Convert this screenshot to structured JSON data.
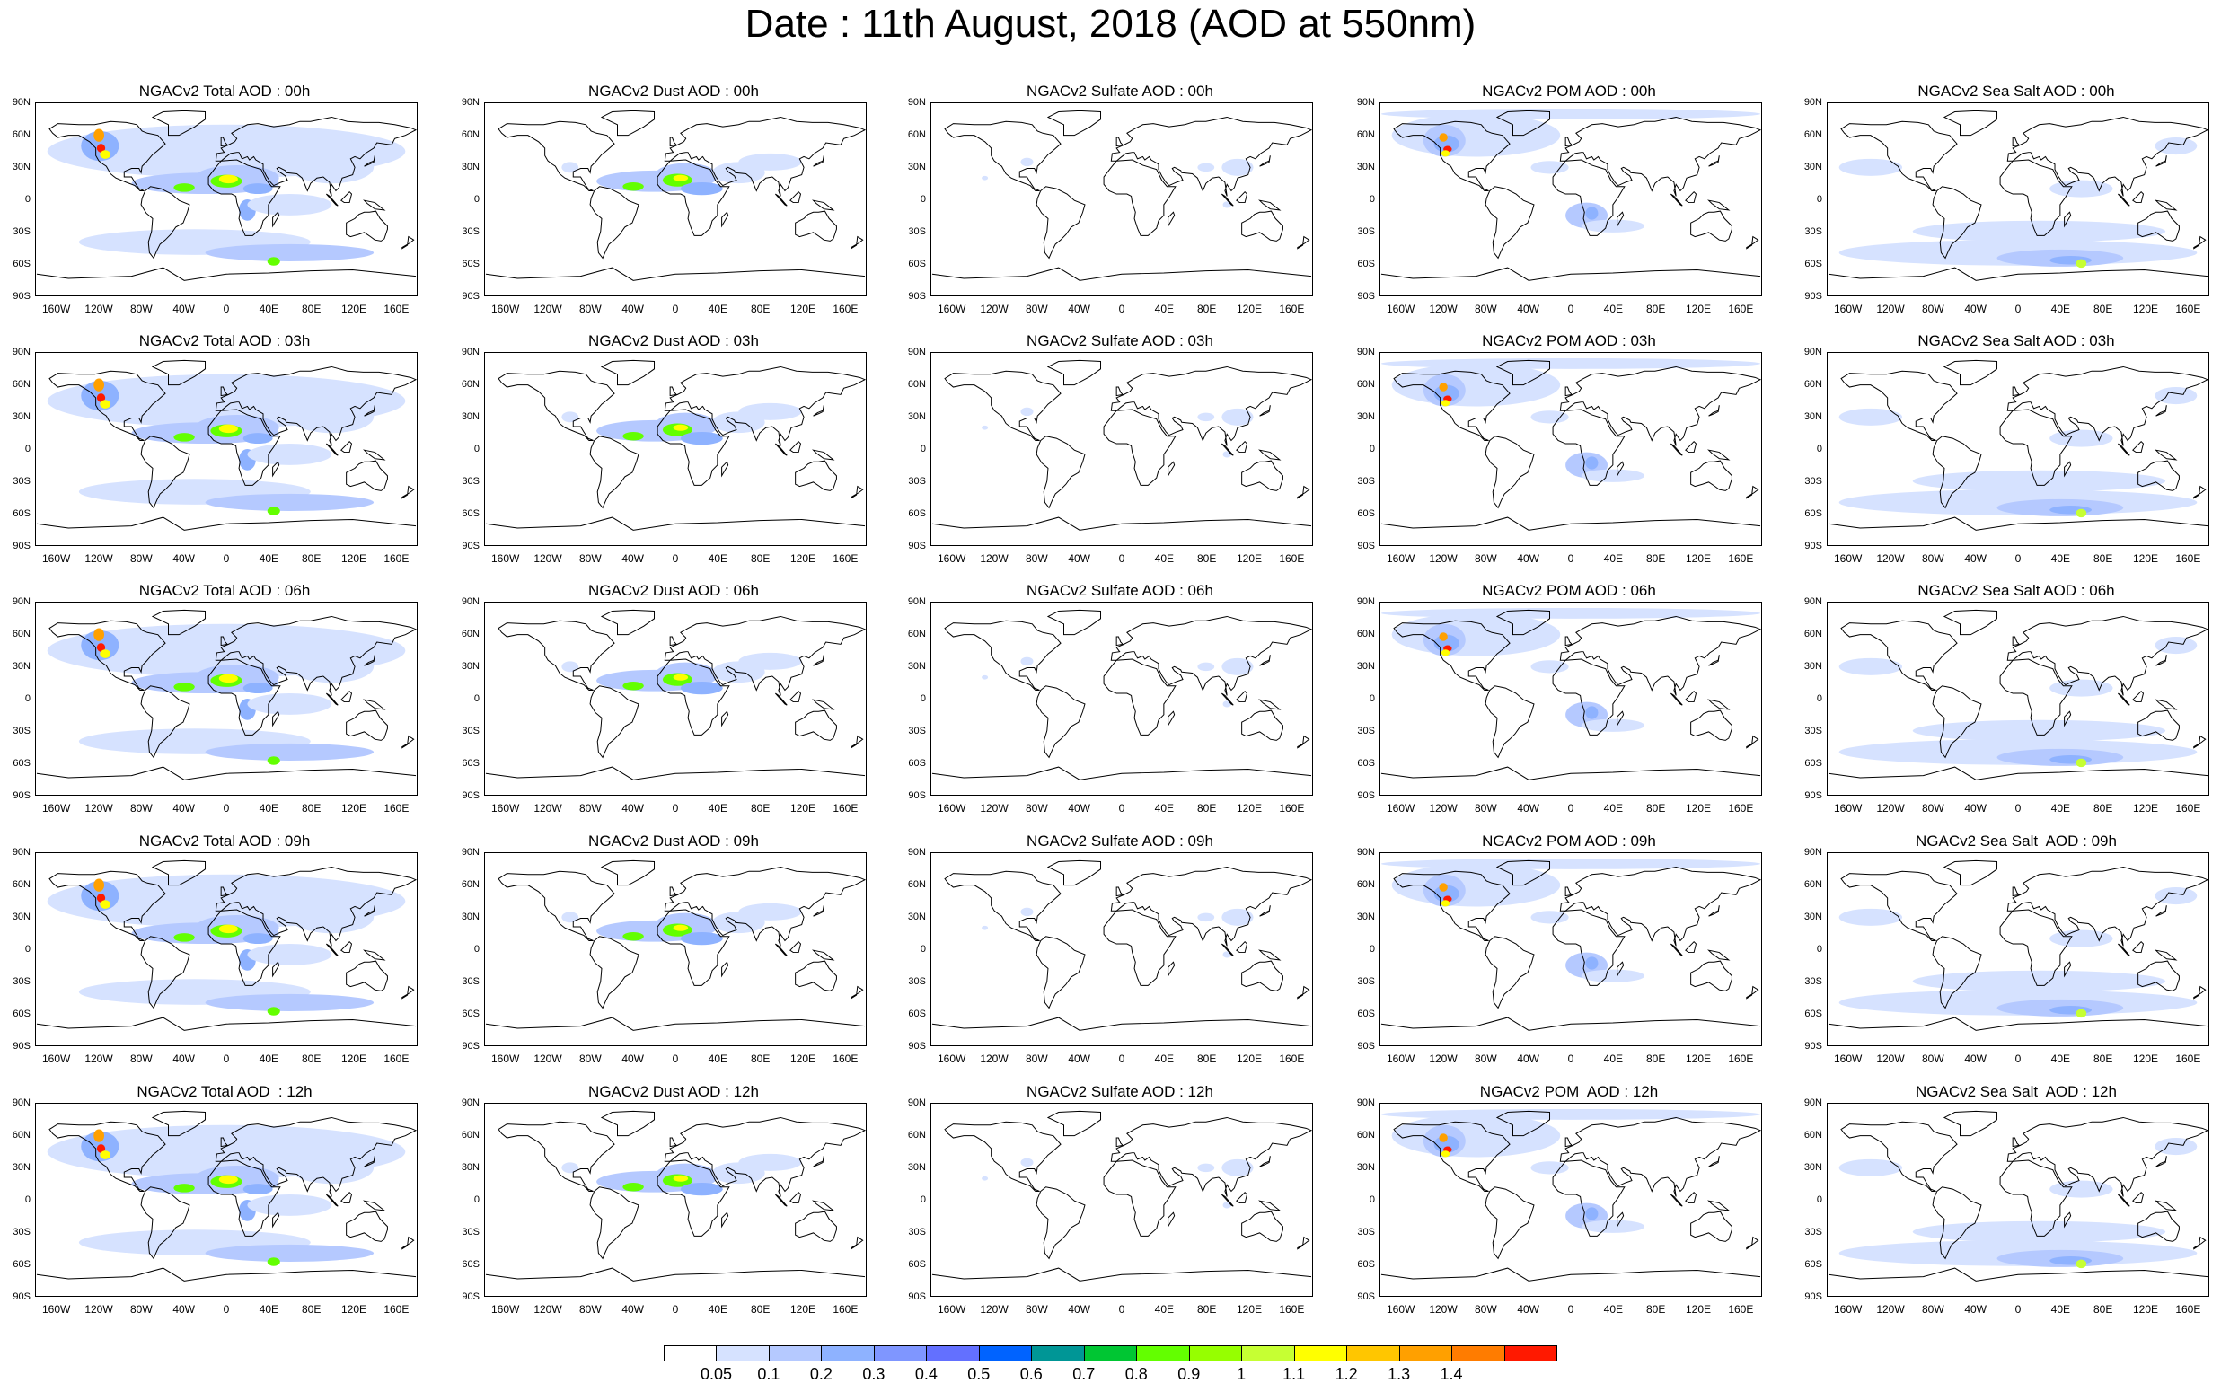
{
  "figure": {
    "title": "Date : 11th August, 2018 (AOD at 550nm)"
  },
  "lat_ticks": [
    "90N",
    "60N",
    "30N",
    "0",
    "30S",
    "60S",
    "90S"
  ],
  "lon_ticks": [
    "160W",
    "120W",
    "80W",
    "40W",
    "0",
    "40E",
    "80E",
    "120E",
    "160E"
  ],
  "species": [
    "Total",
    "Dust",
    "Sulfate",
    "POM",
    "Sea Salt"
  ],
  "times": [
    "00h",
    "03h",
    "06h",
    "09h",
    "12h"
  ],
  "panels": [
    [
      "NGACv2 Total AOD : 00h",
      "NGACv2 Dust AOD : 00h",
      "NGACv2 Sulfate AOD : 00h",
      "NGACv2 POM AOD : 00h",
      "NGACv2 Sea Salt AOD : 00h"
    ],
    [
      "NGACv2 Total AOD : 03h",
      "NGACv2 Dust AOD : 03h",
      "NGACv2 Sulfate AOD : 03h",
      "NGACv2 POM AOD : 03h",
      "NGACv2 Sea Salt AOD : 03h"
    ],
    [
      "NGACv2 Total AOD : 06h",
      "NGACv2 Dust AOD : 06h",
      "NGACv2 Sulfate AOD : 06h",
      "NGACv2 POM AOD : 06h",
      "NGACv2 Sea Salt AOD : 06h"
    ],
    [
      "NGACv2 Total AOD : 09h",
      "NGACv2 Dust AOD : 09h",
      "NGACv2 Sulfate AOD : 09h",
      "NGACv2 POM AOD : 09h",
      "NGACv2 Sea Salt  AOD : 09h"
    ],
    [
      "NGACv2 Total AOD  : 12h",
      "NGACv2 Dust AOD : 12h",
      "NGACv2 Sulfate AOD : 12h",
      "NGACv2 POM  AOD : 12h",
      "NGACv2 Sea Salt  AOD : 12h"
    ]
  ],
  "colorbar": {
    "labels": [
      "0.05",
      "0.1",
      "0.2",
      "0.3",
      "0.4",
      "0.5",
      "0.6",
      "0.7",
      "0.8",
      "0.9",
      "1",
      "1.1",
      "1.2",
      "1.3",
      "1.4"
    ],
    "colors": [
      "#ffffff",
      "#d6e2ff",
      "#b5c9ff",
      "#8eb2ff",
      "#7f96ff",
      "#6370ff",
      "#0063ff",
      "#009696",
      "#00c633",
      "#63ff00",
      "#96ff00",
      "#c6ff33",
      "#ffff00",
      "#ffc600",
      "#ffa000",
      "#ff7c00",
      "#ff1900"
    ]
  }
}
